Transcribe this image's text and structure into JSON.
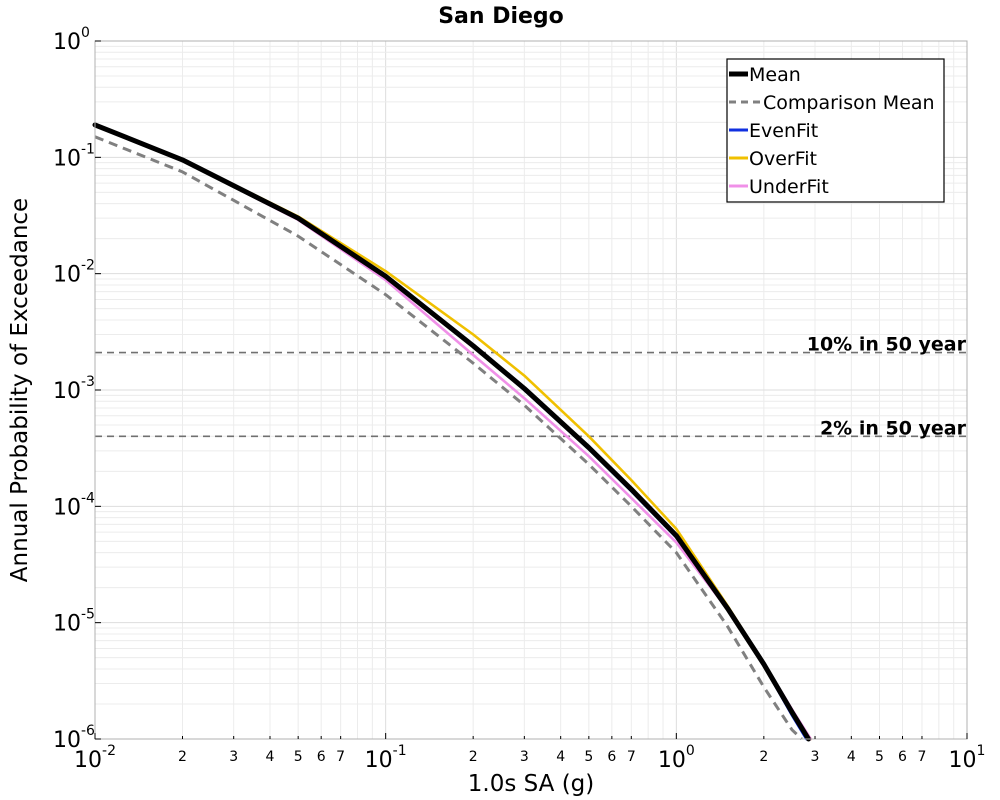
{
  "chart_data": {
    "type": "line",
    "title": "San Diego",
    "xlabel": "1.0s SA (g)",
    "ylabel": "Annual Probability of Exceedance",
    "xscale": "log",
    "yscale": "log",
    "xlim": [
      0.01,
      10
    ],
    "ylim": [
      1e-06,
      1
    ],
    "grid": true,
    "legend_position": "top-right",
    "x_major_ticks": [
      {
        "base": "10",
        "exp": "-2"
      },
      {
        "base": "10",
        "exp": "-1"
      },
      {
        "base": "10",
        "exp": "0"
      },
      {
        "base": "10",
        "exp": "1"
      }
    ],
    "y_major_ticks": [
      {
        "base": "10",
        "exp": "-6"
      },
      {
        "base": "10",
        "exp": "-5"
      },
      {
        "base": "10",
        "exp": "-4"
      },
      {
        "base": "10",
        "exp": "-3"
      },
      {
        "base": "10",
        "exp": "-2"
      },
      {
        "base": "10",
        "exp": "-1"
      },
      {
        "base": "10",
        "exp": "0"
      }
    ],
    "x_minor_labels": [
      "2",
      "3",
      "4",
      "5",
      "6",
      "7"
    ],
    "reference_lines": [
      {
        "label": "10% in 50 year",
        "y": 0.0021
      },
      {
        "label": "2% in 50 year",
        "y": 0.0004
      }
    ],
    "series": [
      {
        "name": "Comparison Mean",
        "color": "#808080",
        "style": "dashed",
        "x": [
          0.01,
          0.02,
          0.05,
          0.1,
          0.2,
          0.3,
          0.5,
          0.7,
          1.0,
          1.5,
          2.0,
          2.5,
          2.7
        ],
        "y": [
          0.15,
          0.075,
          0.021,
          0.0066,
          0.0017,
          0.00074,
          0.00023,
          0.0001,
          4e-05,
          9.3e-06,
          2.8e-06,
          1.2e-06,
          1e-06
        ]
      },
      {
        "name": "EvenFit",
        "color": "#1030e0",
        "style": "solid",
        "x": [
          0.01,
          0.02,
          0.05,
          0.1,
          0.2,
          0.3,
          0.5,
          0.7,
          1.0,
          1.5,
          2.0,
          2.5,
          2.8
        ],
        "y": [
          0.19,
          0.095,
          0.03,
          0.0095,
          0.0024,
          0.001,
          0.00031,
          0.000135,
          5.4e-05,
          1.3e-05,
          4.3e-06,
          1.6e-06,
          1e-06
        ]
      },
      {
        "name": "OverFit",
        "color": "#f0c000",
        "style": "solid",
        "x": [
          0.01,
          0.02,
          0.05,
          0.1,
          0.2,
          0.3,
          0.5,
          0.7,
          1.0,
          1.5,
          2.0,
          2.5,
          2.9
        ],
        "y": [
          0.19,
          0.096,
          0.031,
          0.0105,
          0.003,
          0.00133,
          0.0004,
          0.000168,
          6.4e-05,
          1.4e-05,
          4.5e-06,
          1.7e-06,
          1e-06
        ]
      },
      {
        "name": "UnderFit",
        "color": "#f090e8",
        "style": "solid",
        "x": [
          0.01,
          0.02,
          0.05,
          0.1,
          0.2,
          0.3,
          0.5,
          0.7,
          1.0,
          1.5,
          2.0,
          2.5,
          2.9
        ],
        "y": [
          0.19,
          0.094,
          0.029,
          0.0088,
          0.002,
          0.00085,
          0.00027,
          0.000118,
          4.9e-05,
          1.3e-05,
          4.5e-06,
          1.8e-06,
          1e-06
        ]
      },
      {
        "name": "Mean",
        "color": "#000000",
        "style": "solid-thick",
        "x": [
          0.01,
          0.02,
          0.05,
          0.1,
          0.2,
          0.3,
          0.5,
          0.7,
          1.0,
          1.5,
          2.0,
          2.5,
          2.85
        ],
        "y": [
          0.19,
          0.095,
          0.03,
          0.0095,
          0.0024,
          0.00103,
          0.00032,
          0.00014,
          5.6e-05,
          1.33e-05,
          4.4e-06,
          1.7e-06,
          1e-06
        ]
      }
    ],
    "legend": [
      "Mean",
      "Comparison Mean",
      "EvenFit",
      "OverFit",
      "UnderFit"
    ]
  }
}
